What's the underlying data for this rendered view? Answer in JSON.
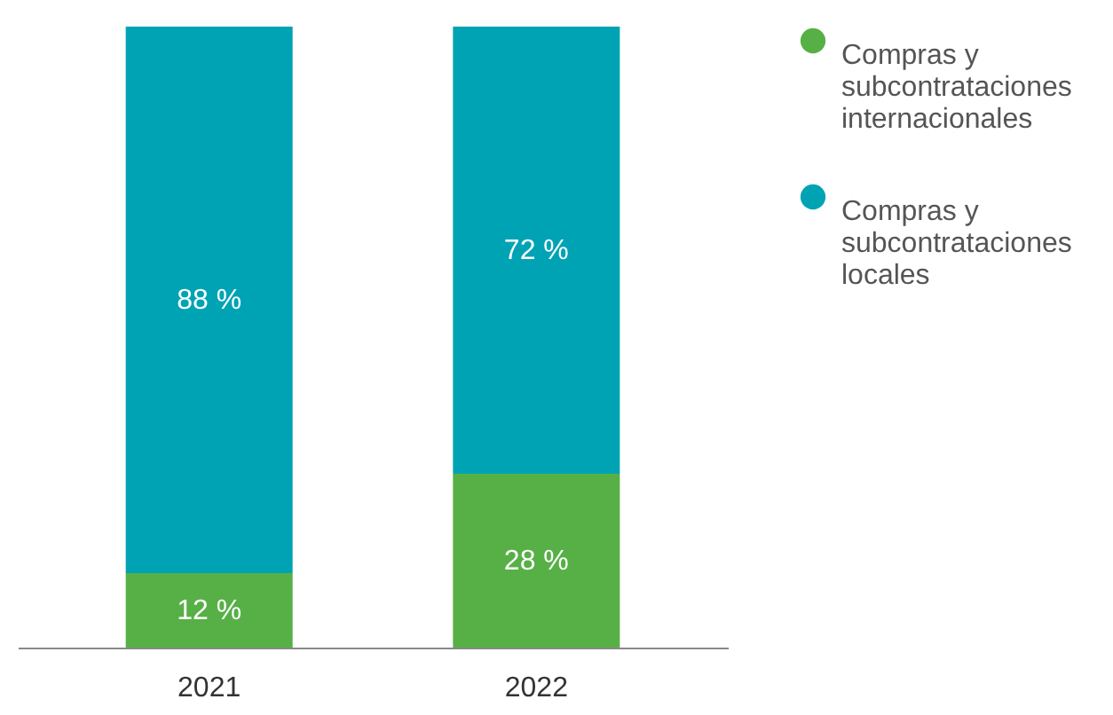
{
  "chart_data": {
    "type": "bar",
    "stacked": true,
    "categories": [
      "2021",
      "2022"
    ],
    "series": [
      {
        "name": "Compras y subcontrataciones internacionales",
        "color": "#57b046",
        "values": [
          12,
          28
        ],
        "value_labels": [
          "12 %",
          "28 %"
        ]
      },
      {
        "name": "Compras y subcontrataciones locales",
        "color": "#00a3b4",
        "values": [
          88,
          72
        ],
        "value_labels": [
          "88 %",
          "72 %"
        ]
      }
    ],
    "legend": "top right"
  }
}
